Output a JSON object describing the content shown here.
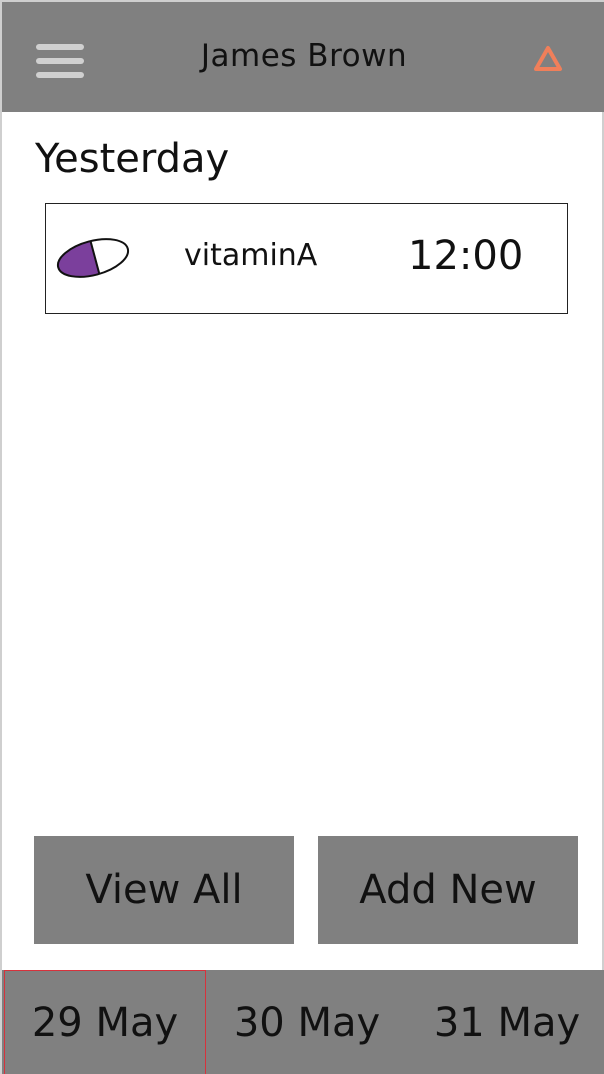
{
  "header": {
    "title": "James Brown",
    "menu_icon": "hamburger-menu-icon",
    "alert_icon": "warning-triangle-icon",
    "alert_color": "#f07f5a",
    "background": "#808080"
  },
  "main": {
    "section_heading": "Yesterday",
    "medications": [
      {
        "name": "vitaminA",
        "time": "12:00",
        "icon": "pill-icon",
        "pill_color": "#7b3f9c"
      }
    ]
  },
  "actions": {
    "view_all_label": "View All",
    "add_new_label": "Add New"
  },
  "date_bar": {
    "dates": [
      "29 May",
      "30 May",
      "31 May"
    ],
    "selected": "29 May",
    "selected_border_color": "#d6323c"
  }
}
